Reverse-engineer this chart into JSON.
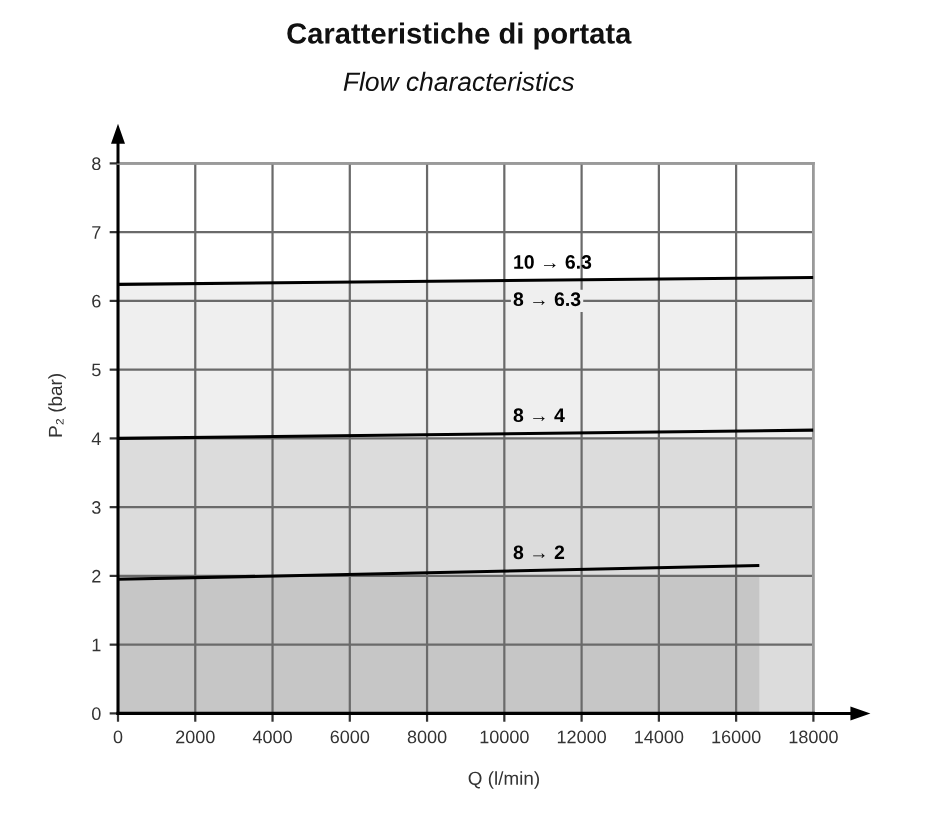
{
  "chart_data": {
    "type": "line",
    "title": "Caratteristiche di portata",
    "subtitle": "Flow characteristics",
    "xlabel": "Q (l/min)",
    "ylabel": "P₂ (bar)",
    "series": [
      {
        "type": "area",
        "name": "10 → 6.3",
        "color": "#efefef",
        "x": [
          0,
          18000
        ],
        "values": [
          6.24,
          6.34
        ]
      },
      {
        "name": "8 → 4",
        "color": "#000000",
        "x": [
          0,
          18000
        ],
        "values": [
          4,
          4.12
        ]
      },
      {
        "name": "8 → 2",
        "color": "#000000",
        "x": [
          0,
          16600
        ],
        "values": [
          1.95,
          2.15
        ]
      },
      {
        "type": "area",
        "color": "#dcdcdc",
        "x": [
          0,
          18000
        ],
        "values": [
          4,
          4
        ]
      },
      {
        "type": "area",
        "color": "#c6c6c6",
        "x": [
          0,
          16600
        ],
        "values": [
          2,
          2
        ]
      }
    ],
    "annotations": [
      "8 → 6.3"
    ],
    "xlim": [
      0,
      18000
    ],
    "ylim": [
      0,
      8
    ],
    "xticks": [
      0,
      2000,
      4000,
      6000,
      8000,
      10000,
      12000,
      14000,
      16000,
      18000
    ],
    "yticks": [
      0,
      1,
      2,
      3,
      4,
      5,
      6,
      7,
      8
    ],
    "grid": true
  }
}
